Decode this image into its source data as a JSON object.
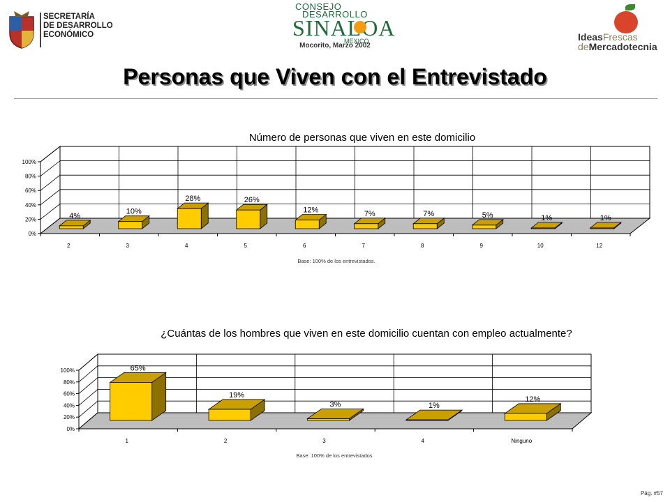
{
  "header": {
    "left_logo_lines": [
      "SECRETARÍA",
      "DE DESARROLLO",
      "ECONÓMICO"
    ],
    "center_logo": {
      "consejo": "CONSEJO",
      "desarrollo": "DESARROLLO",
      "sinaloa": "SINALOA",
      "mexico": "MEXICO"
    },
    "subtitle": "Mocorito, Marzo 2002",
    "right_logo": {
      "ideas": "Ideas",
      "frescas": "Frescas",
      "de": "de",
      "mercadotecnia": "Mercadotecnia"
    }
  },
  "page_title": "Personas que Viven con el Entrevistado",
  "chart_data": [
    {
      "type": "bar",
      "title": "Número de personas que viven en este domicilio",
      "categories": [
        "2",
        "3",
        "4",
        "5",
        "6",
        "7",
        "8",
        "9",
        "10",
        "12"
      ],
      "values": [
        4,
        10,
        28,
        26,
        12,
        7,
        7,
        5,
        1,
        1
      ],
      "value_labels": [
        "4%",
        "10%",
        "28%",
        "26%",
        "12%",
        "7%",
        "7%",
        "5%",
        "1%",
        "1%"
      ],
      "yticks": [
        "0%",
        "20%",
        "40%",
        "60%",
        "80%",
        "100%"
      ],
      "ylim": [
        0,
        100
      ],
      "grid": true,
      "base_note": "Base:  100% de los entrevistados."
    },
    {
      "type": "bar",
      "title": "¿Cuántas de los hombres que viven en este domicilio cuentan con empleo actualmente?",
      "categories": [
        "1",
        "2",
        "3",
        "4",
        "Ninguno"
      ],
      "values": [
        65,
        19,
        3,
        1,
        12
      ],
      "value_labels": [
        "65%",
        "19%",
        "3%",
        "1%",
        "12%"
      ],
      "yticks": [
        "0%",
        "20%",
        "40%",
        "60%",
        "80%",
        "100%"
      ],
      "ylim": [
        0,
        100
      ],
      "grid": true,
      "base_note": "Base:  100% de los entrevistados."
    }
  ],
  "colors": {
    "bar_front": "#ffcc00",
    "bar_side": "#8c7000",
    "bar_top": "#c9a000",
    "floor": "#bdbdbd"
  },
  "page_number": "Pág. #57"
}
